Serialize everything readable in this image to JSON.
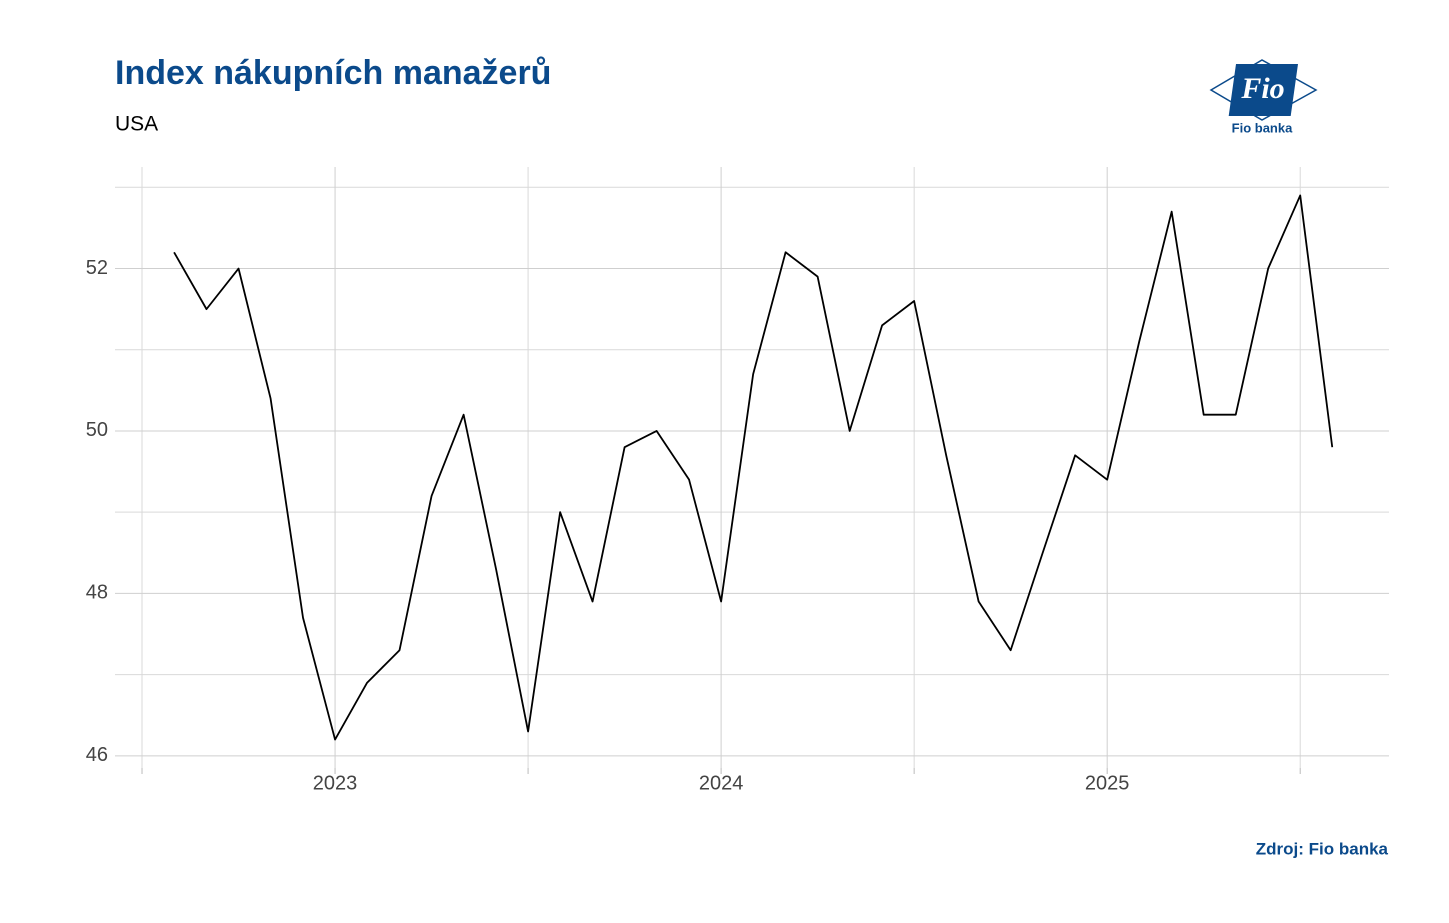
{
  "chart_data": {
    "type": "line",
    "title": "Index nákupních manažerů",
    "subtitle": "USA",
    "source": "Zdroj: Fio banka",
    "x": [
      2022.583,
      2022.667,
      2022.75,
      2022.833,
      2022.917,
      2023,
      2023.083,
      2023.167,
      2023.25,
      2023.333,
      2023.417,
      2023.5,
      2023.583,
      2023.667,
      2023.75,
      2023.833,
      2023.917,
      2024,
      2024.083,
      2024.167,
      2024.25,
      2024.333,
      2024.417,
      2024.5,
      2024.583,
      2024.667,
      2024.75,
      2024.833,
      2024.917,
      2025,
      2025.083,
      2025.167,
      2025.25,
      2025.333,
      2025.417,
      2025.5,
      2025.583
    ],
    "series": [
      {
        "color": "#000000",
        "values": [
          52.2,
          51.5,
          52.0,
          50.4,
          47.7,
          46.2,
          46.9,
          47.3,
          49.2,
          50.2,
          48.3,
          46.3,
          49.0,
          47.9,
          49.8,
          50.0,
          49.4,
          47.9,
          50.7,
          52.2,
          51.9,
          50.0,
          51.3,
          51.6,
          49.7,
          47.9,
          47.3,
          48.5,
          49.7,
          49.4,
          51.1,
          52.7,
          50.2,
          50.2,
          52.0,
          52.9,
          49.8
        ]
      }
    ],
    "xlim": [
      2022.43,
      2025.73
    ],
    "xticks": [
      2023,
      2024,
      2025
    ],
    "ylim": [
      45.85,
      53.25
    ],
    "yticks": [
      46,
      48,
      50,
      52
    ],
    "grid": true
  },
  "logo": {
    "mark": "Fio",
    "name": "Fio banka"
  }
}
